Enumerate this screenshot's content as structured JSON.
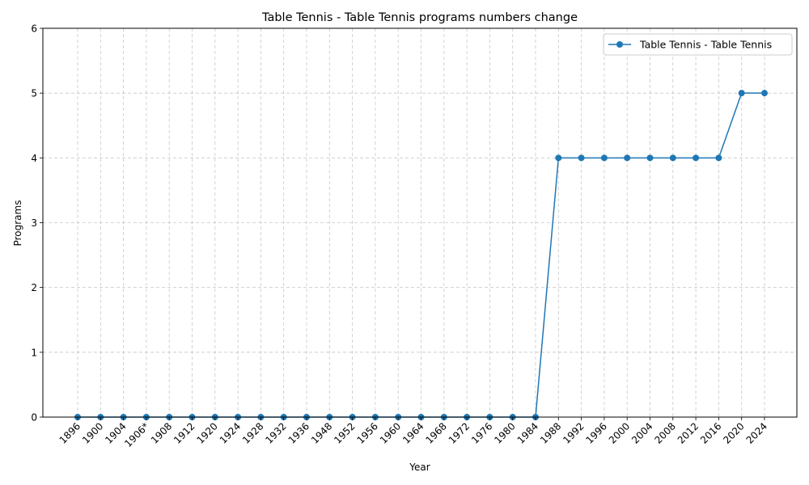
{
  "chart_data": {
    "type": "line",
    "title": "Table Tennis - Table Tennis programs numbers change",
    "xlabel": "Year",
    "ylabel": "Programs",
    "categories": [
      "1896",
      "1900",
      "1904",
      "1906*",
      "1908",
      "1912",
      "1920",
      "1924",
      "1928",
      "1932",
      "1936",
      "1948",
      "1952",
      "1956",
      "1960",
      "1964",
      "1968",
      "1972",
      "1976",
      "1980",
      "1984",
      "1988",
      "1992",
      "1996",
      "2000",
      "2004",
      "2008",
      "2012",
      "2016",
      "2020",
      "2024"
    ],
    "series": [
      {
        "name": "Table Tennis - Table Tennis",
        "color": "#1f77b4",
        "marker": "circle",
        "values": [
          0,
          0,
          0,
          0,
          0,
          0,
          0,
          0,
          0,
          0,
          0,
          0,
          0,
          0,
          0,
          0,
          0,
          0,
          0,
          0,
          0,
          4,
          4,
          4,
          4,
          4,
          4,
          4,
          4,
          5,
          5
        ]
      }
    ],
    "ylim": [
      0,
      6
    ],
    "yticks": [
      0,
      1,
      2,
      3,
      4,
      5,
      6
    ],
    "grid": true,
    "legend_position": "top-right"
  }
}
